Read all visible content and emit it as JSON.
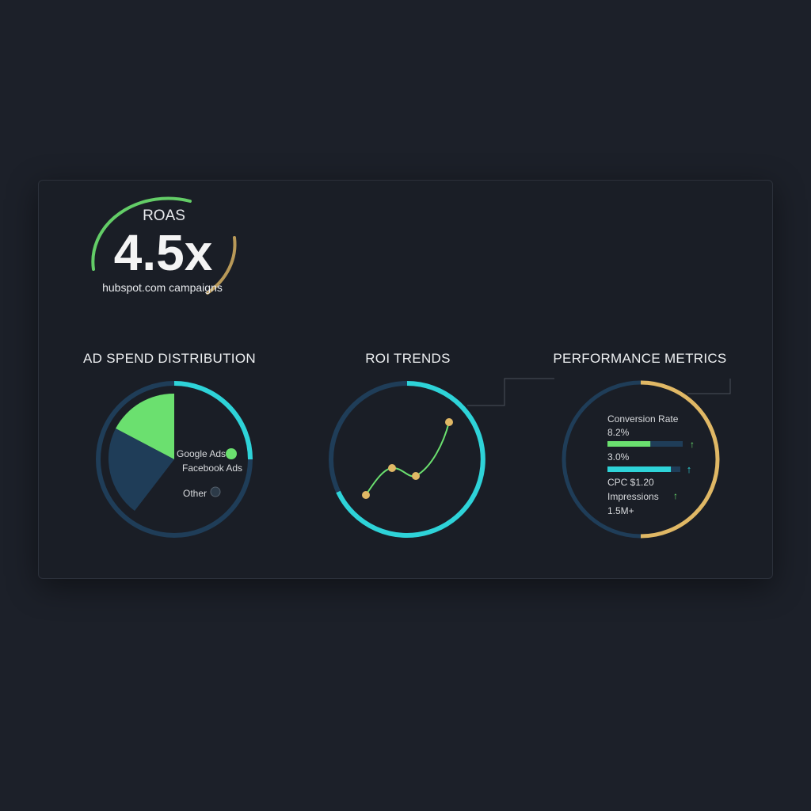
{
  "roas": {
    "label": "ROAS",
    "value": "4.5x",
    "subtitle": "hubspot.com campaigns"
  },
  "ad_spend": {
    "title": "AD SPEND DISTRIBUTION",
    "legend": [
      {
        "label": "Google Ads",
        "icon": "check-circle-icon",
        "color": "#6be06f"
      },
      {
        "label": "Facebook Ads"
      },
      {
        "label": "Other",
        "icon": "check-circle-icon",
        "color": "#2c3a48"
      }
    ]
  },
  "roi": {
    "title": "ROI TRENDS"
  },
  "performance": {
    "title": "PERFORMANCE METRICS",
    "conversion_label": "Conversion Rate",
    "conversion_value": "8.2%",
    "conversion_progress": 0.57,
    "second_value": "3.0%",
    "second_progress": 0.87,
    "cpc": "CPC $1.20",
    "impressions_label": "Impressions",
    "impressions_value": "1.5M+"
  },
  "colors": {
    "green": "#6be06f",
    "cyan": "#2ed3d8",
    "navy": "#1f3d58",
    "gold": "#e0b865"
  }
}
